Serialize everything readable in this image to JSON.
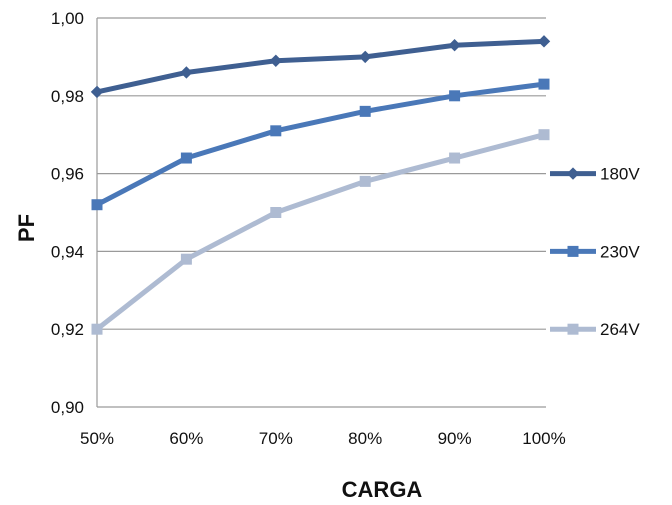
{
  "chart_data": {
    "type": "line",
    "title": "",
    "xlabel": "CARGA",
    "ylabel": "PF",
    "categories": [
      "50%",
      "60%",
      "70%",
      "80%",
      "90%",
      "100%"
    ],
    "ylim": [
      0.9,
      1.0
    ],
    "yticks": [
      "0,90",
      "0,92",
      "0,94",
      "0,96",
      "0,98",
      "1,00"
    ],
    "ytick_values": [
      0.9,
      0.92,
      0.94,
      0.96,
      0.98,
      1.0
    ],
    "grid": true,
    "legend_position": "right",
    "series": [
      {
        "name": "180V",
        "values": [
          0.981,
          0.986,
          0.989,
          0.99,
          0.993,
          0.994
        ],
        "color": "#3f5f91",
        "marker": "diamond"
      },
      {
        "name": "230V",
        "values": [
          0.952,
          0.964,
          0.971,
          0.976,
          0.98,
          0.983
        ],
        "color": "#4a78b8",
        "marker": "square"
      },
      {
        "name": "264V",
        "values": [
          0.92,
          0.938,
          0.95,
          0.958,
          0.964,
          0.97
        ],
        "color": "#aebbd2",
        "marker": "square"
      }
    ]
  }
}
